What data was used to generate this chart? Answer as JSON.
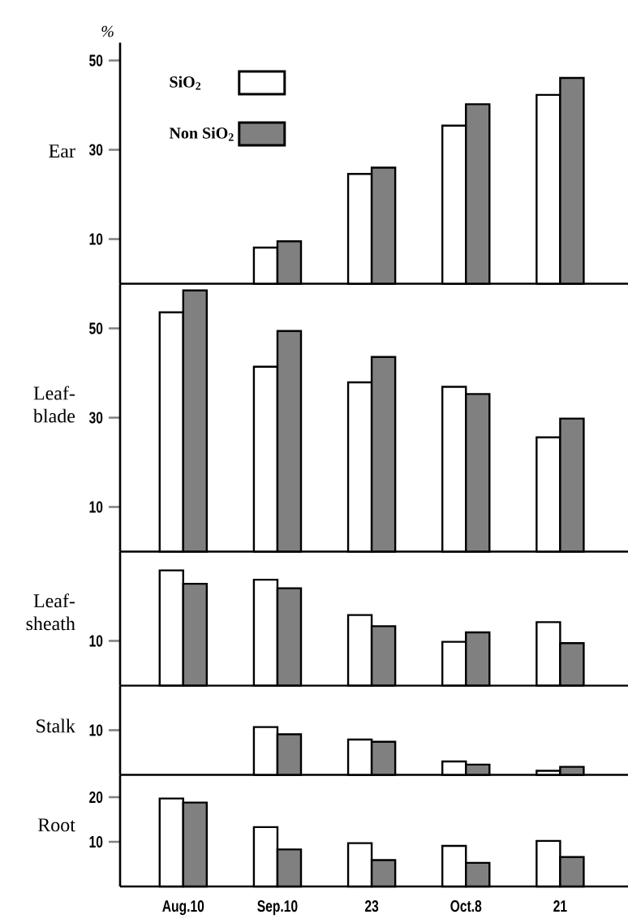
{
  "chart_data": [
    {
      "type": "bar",
      "ylabel": "Ear",
      "categories": [
        null,
        null,
        null,
        null,
        null
      ],
      "series": [
        {
          "name": "SiO$_{2}$",
          "color": "#ffffff",
          "values": [
            null,
            8.1,
            24.6,
            35.4,
            42.3
          ]
        },
        {
          "name": "Non SiO$_{2}$",
          "color": "#808080",
          "values": [
            null,
            9.5,
            26.0,
            40.2,
            46.1
          ]
        }
      ],
      "ylim": [
        0,
        54
      ],
      "yticks": [
        10,
        30,
        50
      ],
      "legend": "top left",
      "tick_labels": "y",
      "annotations": [
        "%"
      ]
    },
    {
      "type": "bar",
      "ylabel": "Leaf-blade",
      "categories": [
        null,
        null,
        null,
        null,
        null
      ],
      "series": [
        {
          "color": "#ffffff",
          "values": [
            53.6,
            41.4,
            37.9,
            36.9,
            25.6
          ]
        },
        {
          "color": "#808080",
          "values": [
            58.5,
            49.4,
            43.6,
            35.3,
            29.8
          ]
        }
      ],
      "ylim": [
        0,
        60
      ],
      "yticks": [
        10,
        30,
        50
      ],
      "tick_labels": "y"
    },
    {
      "type": "bar",
      "ylabel": "Leaf-sheath",
      "categories": [
        null,
        null,
        null,
        null,
        null
      ],
      "series": [
        {
          "color": "#ffffff",
          "values": [
            25.8,
            23.7,
            15.8,
            9.8,
            14.2
          ]
        },
        {
          "color": "#808080",
          "values": [
            22.8,
            21.8,
            13.3,
            11.9,
            9.5
          ]
        }
      ],
      "ylim": [
        0,
        30
      ],
      "yticks": [
        10
      ],
      "tick_labels": "y"
    },
    {
      "type": "bar",
      "ylabel": "Stalk",
      "categories": [
        null,
        null,
        null,
        null,
        null
      ],
      "series": [
        {
          "color": "#ffffff",
          "values": [
            null,
            10.7,
            7.9,
            3.0,
            0.9
          ]
        },
        {
          "color": "#808080",
          "values": [
            null,
            9.1,
            7.4,
            2.3,
            1.8
          ]
        }
      ],
      "ylim": [
        0,
        20
      ],
      "yticks": [
        10
      ],
      "tick_labels": "y"
    },
    {
      "type": "bar",
      "ylabel": "Root",
      "categories": [
        "Aug.10",
        "Sep.10",
        "23",
        "Oct.8",
        "21"
      ],
      "series": [
        {
          "color": "#ffffff",
          "values": [
            19.7,
            13.3,
            9.7,
            9.1,
            10.2
          ]
        },
        {
          "color": "#808080",
          "values": [
            18.8,
            8.3,
            5.9,
            5.3,
            6.6
          ]
        }
      ],
      "ylim": [
        0,
        25
      ],
      "yticks": [
        10,
        20
      ]
    }
  ]
}
